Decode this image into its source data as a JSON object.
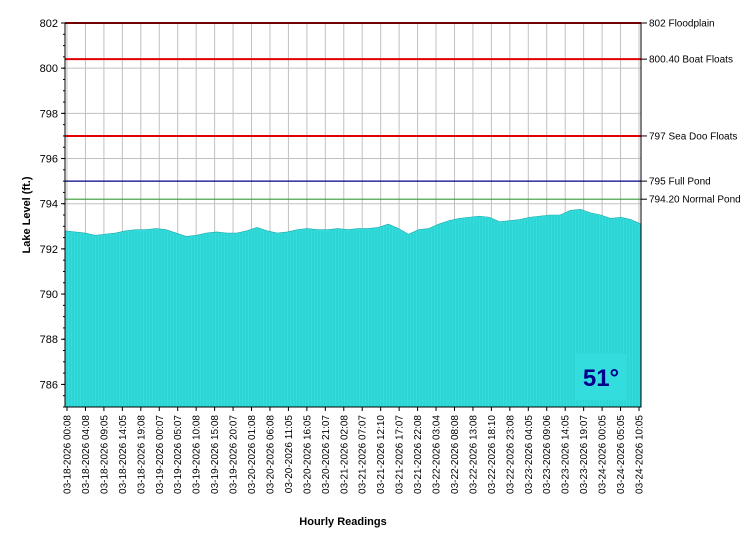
{
  "chart_data": {
    "type": "area",
    "title": "",
    "xlabel": "Hourly Readings",
    "ylabel": "Lake Level (ft.)",
    "ylim": [
      785,
      802
    ],
    "yticks": [
      786,
      788,
      790,
      792,
      794,
      796,
      798,
      800,
      802
    ],
    "grid": true,
    "fill_color": "#33dddd",
    "x_tick_labels": [
      "03-18-2026 00:08",
      "03-18-2026 04:08",
      "03-18-2026 09:05",
      "03-18-2026 14:05",
      "03-18-2026 19:08",
      "03-19-2026 00:07",
      "03-19-2026 05:07",
      "03-19-2026 10:08",
      "03-19-2026 15:08",
      "03-19-2026 20:07",
      "03-20-2026 01:08",
      "03-20-2026 06:08",
      "03-20-2026 11:05",
      "03-20-2026 16:05",
      "03-20-2026 21:07",
      "03-21-2026 02:08",
      "03-21-2026 07:07",
      "03-21-2026 12:10",
      "03-21-2026 17:07",
      "03-21-2026 22:08",
      "03-22-2026 03:04",
      "03-22-2026 08:08",
      "03-22-2026 13:08",
      "03-22-2026 18:10",
      "03-22-2026 23:08",
      "03-23-2026 04:05",
      "03-23-2026 09:06",
      "03-23-2026 14:05",
      "03-23-2026 19:07",
      "03-24-2026 00:05",
      "03-24-2026 05:05",
      "03-24-2026 10:05"
    ],
    "series": [
      {
        "values": [
          792.8,
          792.75,
          792.7,
          792.6,
          792.65,
          792.7,
          792.8,
          792.85,
          792.85,
          792.9,
          792.85,
          792.7,
          792.55,
          792.6,
          792.7,
          792.75,
          792.7,
          792.7,
          792.8,
          792.95,
          792.8,
          792.7,
          792.75,
          792.85,
          792.9,
          792.85,
          792.85,
          792.9,
          792.85,
          792.9,
          792.9,
          792.95,
          793.1,
          792.9,
          792.65,
          792.85,
          792.9,
          793.1,
          793.25,
          793.35,
          793.4,
          793.45,
          793.4,
          793.2,
          793.25,
          793.3,
          793.4,
          793.45,
          793.5,
          793.5,
          793.7,
          793.75,
          793.6,
          793.5,
          793.35,
          793.4,
          793.3,
          793.1
        ]
      }
    ],
    "reference_lines": [
      {
        "value": 802,
        "label": "802 Floodplain",
        "color": "#e00000"
      },
      {
        "value": 800.4,
        "label": "800.40 Boat Floats",
        "color": "#e00000"
      },
      {
        "value": 797,
        "label": "797 Sea Doo Floats",
        "color": "#e00000"
      },
      {
        "value": 795,
        "label": "795 Full Pond",
        "color": "#000080"
      },
      {
        "value": 794.2,
        "label": "794.20 Normal Pond",
        "color": "#3a9a3a"
      }
    ],
    "badge": {
      "text": "51°",
      "background": "#33dddd",
      "color": "#00008b"
    }
  }
}
